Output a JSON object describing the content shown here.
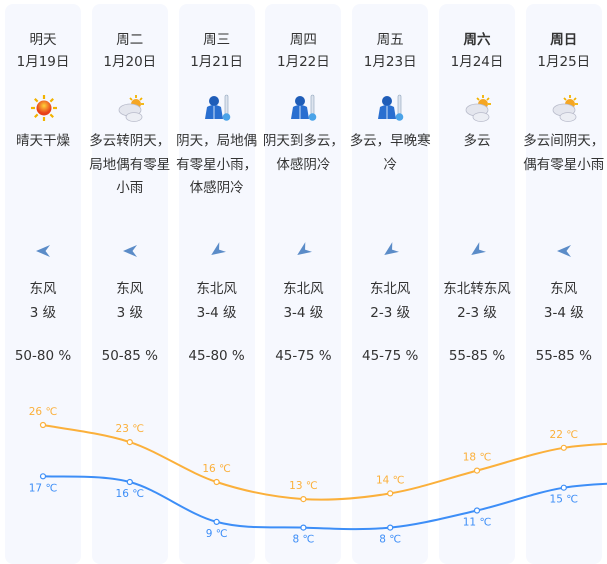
{
  "days": [
    {
      "day": "明天",
      "date": "1月19日",
      "icon": "sunny-icon",
      "desc": "晴天干燥",
      "wind_dir": "东风",
      "wind_level": "3 级",
      "wind_arrow": "east-wind",
      "humidity": "50-80 %",
      "bold": false
    },
    {
      "day": "周二",
      "date": "1月20日",
      "icon": "partly-cloudy-icon",
      "desc": "多云转阴天，局地偶有零星小雨",
      "wind_dir": "东风",
      "wind_level": "3 级",
      "wind_arrow": "east-wind",
      "humidity": "50-85 %",
      "bold": false
    },
    {
      "day": "周三",
      "date": "1月21日",
      "icon": "cold-icon",
      "desc": "阴天，局地偶有零星小雨，体感阴冷",
      "wind_dir": "东北风",
      "wind_level": "3-4 级",
      "wind_arrow": "northeast-wind",
      "humidity": "45-80 %",
      "bold": false
    },
    {
      "day": "周四",
      "date": "1月22日",
      "icon": "cold-icon",
      "desc": "阴天到多云，体感阴冷",
      "wind_dir": "东北风",
      "wind_level": "3-4 级",
      "wind_arrow": "northeast-wind",
      "humidity": "45-75 %",
      "bold": false
    },
    {
      "day": "周五",
      "date": "1月23日",
      "icon": "cold-icon",
      "desc": "多云，早晚寒冷",
      "wind_dir": "东北风",
      "wind_level": "2-3 级",
      "wind_arrow": "northeast-wind",
      "humidity": "45-75 %",
      "bold": false
    },
    {
      "day": "周六",
      "date": "1月24日",
      "icon": "partly-cloudy-icon",
      "desc": "多云",
      "wind_dir": "东北转东风",
      "wind_level": "2-3 级",
      "wind_arrow": "northeast-wind",
      "humidity": "55-85 %",
      "bold": true
    },
    {
      "day": "周日",
      "date": "1月25日",
      "icon": "partly-cloudy-icon",
      "desc": "多云间阴天，偶有零星小雨",
      "wind_dir": "东风",
      "wind_level": "3-4 级",
      "wind_arrow": "east-wind",
      "humidity": "55-85 %",
      "bold": true
    }
  ],
  "chart_data": {
    "type": "line",
    "categories": [
      "1月19日",
      "1月20日",
      "1月21日",
      "1月22日",
      "1月23日",
      "1月24日",
      "1月25日"
    ],
    "unit": "℃",
    "series": [
      {
        "key": "high",
        "values": [
          26,
          23,
          16,
          13,
          14,
          18,
          22
        ],
        "color": "#fbb03b"
      },
      {
        "key": "low",
        "values": [
          17,
          16,
          9,
          8,
          8,
          11,
          15
        ],
        "color": "#3d8ef7"
      }
    ]
  },
  "colors": {
    "column_bg": "#f6f8fe",
    "arrow": "#5b8cc8"
  }
}
